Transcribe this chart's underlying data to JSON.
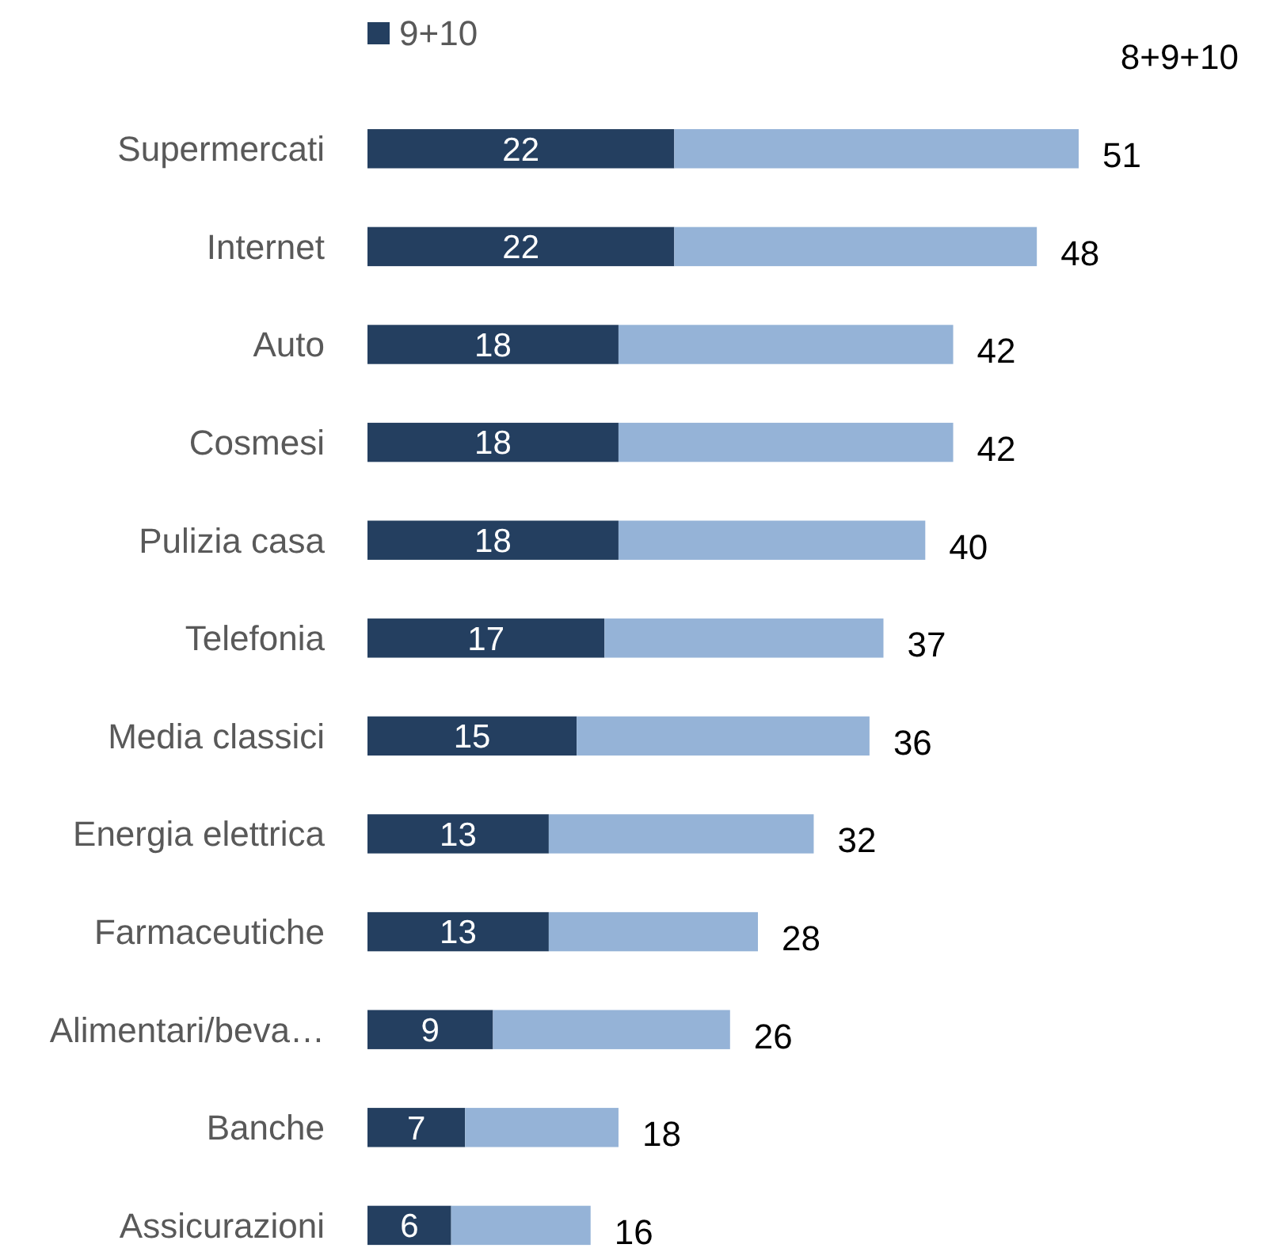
{
  "chart_data": {
    "type": "bar",
    "orientation": "horizontal",
    "stacked": true,
    "legend": "top",
    "annotations": [
      "8+9+10"
    ],
    "categories": [
      "Supermercati",
      "Internet",
      "Auto",
      "Cosmesi",
      "Pulizia casa",
      "Telefonia",
      "Media classici",
      "Energia elettrica",
      "Farmaceutiche",
      "Alimentari/beva…",
      "Banche",
      "Assicurazioni"
    ],
    "series": [
      {
        "name": "9+10",
        "color": "#243f60",
        "values": [
          22,
          22,
          18,
          18,
          18,
          17,
          15,
          13,
          13,
          9,
          7,
          6
        ],
        "value_labels": [
          "22",
          "22",
          "18",
          "18",
          "18",
          "17",
          "15",
          "13",
          "13",
          "9",
          "7",
          "6"
        ]
      },
      {
        "color": "#95b3d7",
        "values": [
          29,
          26,
          24,
          24,
          22,
          20,
          21,
          19,
          15,
          17,
          11,
          10
        ]
      }
    ],
    "totals": [
      "51",
      "48",
      "42",
      "42",
      "40",
      "37",
      "36",
      "32",
      "28",
      "26",
      "18",
      "16"
    ]
  }
}
